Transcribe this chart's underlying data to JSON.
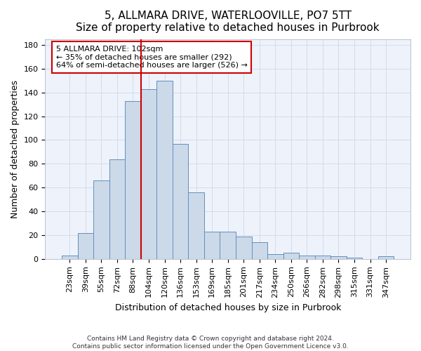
{
  "title": "5, ALLMARA DRIVE, WATERLOOVILLE, PO7 5TT",
  "subtitle": "Size of property relative to detached houses in Purbrook",
  "xlabel": "Distribution of detached houses by size in Purbrook",
  "ylabel": "Number of detached properties",
  "bin_labels": [
    "23sqm",
    "39sqm",
    "55sqm",
    "72sqm",
    "88sqm",
    "104sqm",
    "120sqm",
    "136sqm",
    "153sqm",
    "169sqm",
    "185sqm",
    "201sqm",
    "217sqm",
    "234sqm",
    "250sqm",
    "266sqm",
    "282sqm",
    "298sqm",
    "315sqm",
    "331sqm",
    "347sqm"
  ],
  "bin_values": [
    3,
    22,
    66,
    84,
    133,
    143,
    150,
    97,
    56,
    23,
    23,
    19,
    14,
    4,
    5,
    3,
    3,
    2,
    1,
    0,
    2
  ],
  "bar_color": "#ccd9e8",
  "bar_edge_color": "#6090c0",
  "highlight_color": "#cc0000",
  "annotation_line1": "5 ALLMARA DRIVE: 102sqm",
  "annotation_line2": "← 35% of detached houses are smaller (292)",
  "annotation_line3": "64% of semi-detached houses are larger (526) →",
  "annotation_box_color": "#ffffff",
  "annotation_box_edge_color": "#cc0000",
  "ylim": [
    0,
    185
  ],
  "yticks": [
    0,
    20,
    40,
    60,
    80,
    100,
    120,
    140,
    160,
    180
  ],
  "footer": "Contains HM Land Registry data © Crown copyright and database right 2024.\nContains public sector information licensed under the Open Government Licence v3.0.",
  "title_fontsize": 11,
  "axis_fontsize": 9,
  "tick_fontsize": 8
}
